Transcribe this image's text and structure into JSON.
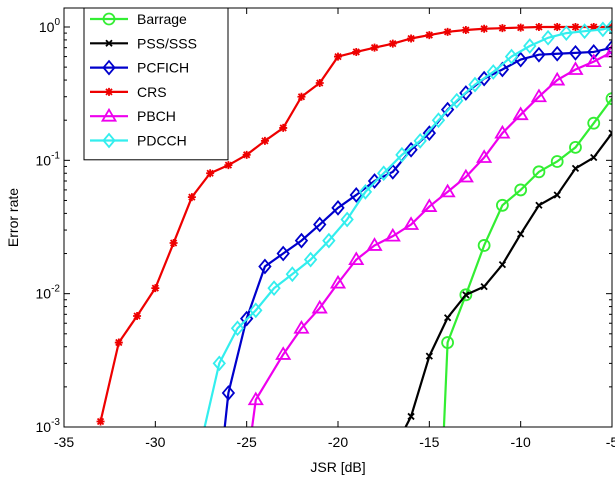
{
  "chart_data": {
    "type": "line",
    "title": "",
    "xlabel": "JSR [dB]",
    "ylabel": "Error rate",
    "xlim": [
      -35,
      -5
    ],
    "ylim": [
      0.001,
      1.6
    ],
    "yscale": "log",
    "x_ticks": [
      -35,
      -30,
      -25,
      -20,
      -15,
      -10,
      -5
    ],
    "y_ticks": [
      {
        "value": 0.001,
        "base": "10",
        "exp": "-3"
      },
      {
        "value": 0.01,
        "base": "10",
        "exp": "-2"
      },
      {
        "value": 0.1,
        "base": "10",
        "exp": "-1"
      },
      {
        "value": 1,
        "base": "10",
        "exp": "0"
      }
    ],
    "grid": false,
    "legend_position": "top-left",
    "series": [
      {
        "name": "Barrage",
        "color": "#33ee33",
        "marker": "circle",
        "points": [
          [
            -14.2,
            0.001
          ],
          [
            -14,
            0.0043
          ],
          [
            -13,
            0.0098
          ],
          [
            -12,
            0.023
          ],
          [
            -11,
            0.046
          ],
          [
            -10,
            0.06
          ],
          [
            -9,
            0.082
          ],
          [
            -8,
            0.098
          ],
          [
            -7,
            0.125
          ],
          [
            -6,
            0.19
          ],
          [
            -5,
            0.29
          ]
        ]
      },
      {
        "name": "PSS/SSS",
        "color": "#000000",
        "marker": "x",
        "points": [
          [
            -16.3,
            0.001
          ],
          [
            -16,
            0.0012
          ],
          [
            -15,
            0.0034
          ],
          [
            -14,
            0.0066
          ],
          [
            -13,
            0.0098
          ],
          [
            -12,
            0.0113
          ],
          [
            -11,
            0.0165
          ],
          [
            -10,
            0.028
          ],
          [
            -9,
            0.046
          ],
          [
            -8,
            0.055
          ],
          [
            -7,
            0.087
          ],
          [
            -6,
            0.105
          ],
          [
            -5,
            0.16
          ]
        ]
      },
      {
        "name": "PCFICH",
        "color": "#0000cc",
        "marker": "diamond",
        "points": [
          [
            -26.2,
            0.001
          ],
          [
            -26,
            0.0018
          ],
          [
            -25,
            0.0065
          ],
          [
            -24,
            0.016
          ],
          [
            -23,
            0.02
          ],
          [
            -22,
            0.025
          ],
          [
            -21,
            0.033
          ],
          [
            -20,
            0.044
          ],
          [
            -19,
            0.055
          ],
          [
            -18,
            0.07
          ],
          [
            -17,
            0.082
          ],
          [
            -16,
            0.12
          ],
          [
            -15,
            0.16
          ],
          [
            -14,
            0.24
          ],
          [
            -13,
            0.32
          ],
          [
            -12,
            0.41
          ],
          [
            -11,
            0.48
          ],
          [
            -10,
            0.57
          ],
          [
            -9,
            0.62
          ],
          [
            -8,
            0.63
          ],
          [
            -7,
            0.64
          ],
          [
            -6,
            0.65
          ],
          [
            -5,
            0.7
          ]
        ]
      },
      {
        "name": "CRS",
        "color": "#ee0000",
        "marker": "star",
        "points": [
          [
            -33,
            0.0011
          ],
          [
            -32,
            0.0043
          ],
          [
            -31,
            0.0068
          ],
          [
            -30,
            0.011
          ],
          [
            -29,
            0.024
          ],
          [
            -28,
            0.053
          ],
          [
            -27,
            0.08
          ],
          [
            -26,
            0.092
          ],
          [
            -25,
            0.11
          ],
          [
            -24,
            0.14
          ],
          [
            -23,
            0.175
          ],
          [
            -22,
            0.3
          ],
          [
            -21,
            0.38
          ],
          [
            -20,
            0.6
          ],
          [
            -19,
            0.65
          ],
          [
            -18,
            0.7
          ],
          [
            -17,
            0.75
          ],
          [
            -16,
            0.82
          ],
          [
            -15,
            0.87
          ],
          [
            -14,
            0.92
          ],
          [
            -13,
            0.95
          ],
          [
            -12,
            0.97
          ],
          [
            -11,
            0.98
          ],
          [
            -10,
            0.99
          ],
          [
            -9,
            1.0
          ],
          [
            -8,
            1.0
          ],
          [
            -7,
            1.0
          ],
          [
            -6,
            1.0
          ],
          [
            -5,
            1.0
          ]
        ]
      },
      {
        "name": "PBCH",
        "color": "#ee00ee",
        "marker": "triangle",
        "points": [
          [
            -24.7,
            0.001
          ],
          [
            -24.5,
            0.0016
          ],
          [
            -23,
            0.0035
          ],
          [
            -22,
            0.0055
          ],
          [
            -21,
            0.0078
          ],
          [
            -20,
            0.012
          ],
          [
            -19,
            0.018
          ],
          [
            -18,
            0.023
          ],
          [
            -17,
            0.027
          ],
          [
            -16,
            0.033
          ],
          [
            -15,
            0.045
          ],
          [
            -14,
            0.058
          ],
          [
            -13,
            0.075
          ],
          [
            -12,
            0.105
          ],
          [
            -11,
            0.16
          ],
          [
            -10,
            0.22
          ],
          [
            -9,
            0.3
          ],
          [
            -8,
            0.4
          ],
          [
            -7,
            0.48
          ],
          [
            -6,
            0.55
          ],
          [
            -5,
            0.65
          ]
        ]
      },
      {
        "name": "PDCCH",
        "color": "#33eeee",
        "marker": "diamond",
        "points": [
          [
            -27.3,
            0.001
          ],
          [
            -26.5,
            0.003
          ],
          [
            -25.5,
            0.0055
          ],
          [
            -24.5,
            0.0075
          ],
          [
            -23.5,
            0.011
          ],
          [
            -22.5,
            0.014
          ],
          [
            -21.5,
            0.018
          ],
          [
            -20.5,
            0.025
          ],
          [
            -19.5,
            0.036
          ],
          [
            -18.5,
            0.058
          ],
          [
            -17.5,
            0.08
          ],
          [
            -16.5,
            0.11
          ],
          [
            -15.5,
            0.14
          ],
          [
            -14.5,
            0.2
          ],
          [
            -13.5,
            0.28
          ],
          [
            -12.5,
            0.37
          ],
          [
            -11.5,
            0.46
          ],
          [
            -10.5,
            0.6
          ],
          [
            -9.5,
            0.72
          ],
          [
            -8.5,
            0.83
          ],
          [
            -7.5,
            0.9
          ],
          [
            -6.5,
            0.93
          ],
          [
            -5.5,
            0.96
          ],
          [
            -5,
            1.0
          ]
        ]
      }
    ]
  }
}
